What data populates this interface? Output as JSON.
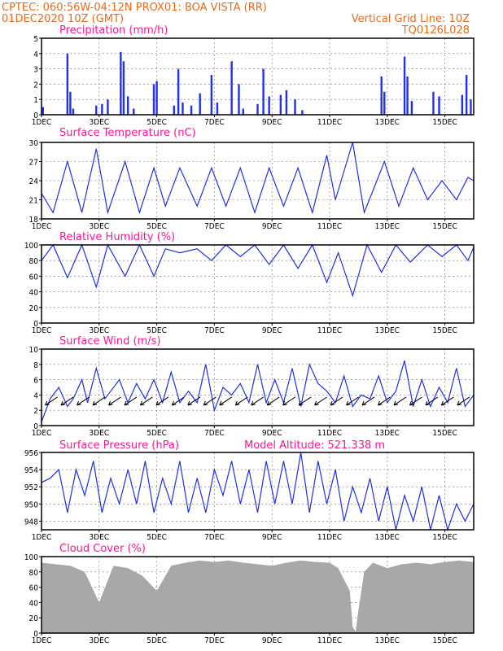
{
  "header": {
    "left1": "CPTEC:   060:56W-04:12N   PROX01: BOA VISTA (RR)",
    "left2": "01DEC2020 10Z (GMT)",
    "right2": "Vertical Grid Line: 10Z",
    "right3": "TQ0126L028"
  },
  "x_labels": [
    "1DEC",
    "3DEC",
    "5DEC",
    "7DEC",
    "9DEC",
    "11DEC",
    "13DEC",
    "15DEC"
  ],
  "x_label_day": [
    1,
    3,
    5,
    7,
    9,
    11,
    13,
    15
  ],
  "x_range_days": [
    1,
    16
  ],
  "colors": {
    "header": "#e86a1a",
    "title": "#ff1493",
    "series": "#2030e0",
    "cloud": "#a8a8a8"
  },
  "chart_data": [
    {
      "type": "bar",
      "title": "Precipitation (mm/h)",
      "ylim": [
        0,
        5
      ],
      "yticks": [
        0,
        1,
        2,
        3,
        4,
        5
      ],
      "series": [
        {
          "day": [
            1.05,
            1.9,
            2.0,
            2.1,
            2.9,
            3.1,
            3.3,
            3.75,
            3.85,
            4.0,
            4.2,
            4.9,
            5.0,
            5.6,
            5.75,
            5.9,
            6.2,
            6.5,
            6.9,
            7.1,
            7.6,
            7.85,
            8.0,
            8.5,
            8.7,
            8.9,
            9.3,
            9.5,
            9.8,
            10.05,
            12.8,
            12.9,
            13.6,
            13.7,
            13.85,
            14.6,
            14.8,
            15.6,
            15.75,
            15.9
          ],
          "values": [
            0.5,
            4.0,
            1.5,
            0.4,
            0.6,
            0.7,
            1.0,
            4.1,
            3.5,
            1.2,
            0.4,
            2.0,
            2.2,
            0.6,
            3.0,
            0.8,
            0.6,
            1.4,
            2.6,
            0.8,
            3.5,
            2.0,
            0.4,
            0.7,
            3.0,
            1.2,
            1.3,
            1.6,
            1.0,
            0.3,
            2.5,
            1.5,
            3.8,
            2.5,
            0.9,
            1.5,
            1.2,
            1.3,
            2.6,
            1.0
          ]
        }
      ]
    },
    {
      "type": "line",
      "title": "Surface Temperature (nC)",
      "ylim": [
        18,
        30
      ],
      "yticks": [
        18,
        21,
        24,
        27,
        30
      ],
      "series": [
        {
          "day": [
            1.0,
            1.4,
            1.9,
            2.4,
            2.9,
            3.3,
            3.9,
            4.4,
            4.9,
            5.3,
            5.8,
            6.4,
            6.9,
            7.4,
            7.9,
            8.4,
            8.9,
            9.4,
            9.9,
            10.4,
            10.9,
            11.2,
            11.8,
            12.2,
            12.9,
            13.4,
            13.9,
            14.4,
            14.9,
            15.4,
            15.8,
            16.0
          ],
          "values": [
            22,
            19,
            27,
            19,
            29,
            19,
            27,
            19,
            26,
            20,
            26,
            20,
            26,
            20,
            26,
            19,
            26,
            20,
            26,
            19,
            28,
            21,
            30,
            19,
            27,
            20,
            26,
            21,
            24,
            21,
            24.5,
            24
          ]
        }
      ]
    },
    {
      "type": "line",
      "title": "Relative Humidity (%)",
      "ylim": [
        0,
        100
      ],
      "yticks": [
        0,
        20,
        40,
        60,
        80,
        100
      ],
      "series": [
        {
          "day": [
            1.0,
            1.4,
            1.9,
            2.4,
            2.9,
            3.3,
            3.9,
            4.4,
            4.9,
            5.3,
            5.8,
            6.4,
            6.9,
            7.4,
            7.9,
            8.4,
            8.9,
            9.4,
            9.9,
            10.4,
            10.9,
            11.3,
            11.8,
            12.3,
            12.8,
            13.3,
            13.8,
            14.4,
            14.9,
            15.4,
            15.8,
            16.0
          ],
          "values": [
            80,
            100,
            58,
            100,
            46,
            100,
            60,
            100,
            60,
            95,
            90,
            95,
            80,
            100,
            85,
            100,
            75,
            100,
            70,
            100,
            52,
            90,
            35,
            100,
            65,
            100,
            78,
            100,
            85,
            100,
            80,
            97
          ]
        }
      ]
    },
    {
      "type": "line",
      "title": "Surface Wind (m/s)",
      "ylim": [
        0,
        10
      ],
      "yticks": [
        0,
        2,
        4,
        6,
        8,
        10
      ],
      "series": [
        {
          "day": [
            1.0,
            1.3,
            1.6,
            1.9,
            2.1,
            2.4,
            2.6,
            2.9,
            3.2,
            3.4,
            3.7,
            4.0,
            4.3,
            4.6,
            4.9,
            5.2,
            5.5,
            5.8,
            6.1,
            6.4,
            6.7,
            7.0,
            7.3,
            7.6,
            7.9,
            8.2,
            8.5,
            8.8,
            9.1,
            9.4,
            9.7,
            10.0,
            10.3,
            10.6,
            10.9,
            11.2,
            11.5,
            11.8,
            12.1,
            12.4,
            12.7,
            13.0,
            13.3,
            13.6,
            13.9,
            14.2,
            14.5,
            14.8,
            15.1,
            15.4,
            15.7,
            16.0
          ],
          "values": [
            0.5,
            3.5,
            5.0,
            2.5,
            3.5,
            6.0,
            3.0,
            7.5,
            3.5,
            4.5,
            6.0,
            3.0,
            5.5,
            3.5,
            6.0,
            3.0,
            7.0,
            3.0,
            4.5,
            3.0,
            8.0,
            2.0,
            5.0,
            4.0,
            5.5,
            3.0,
            8.0,
            3.0,
            6.0,
            3.0,
            7.5,
            2.5,
            8.0,
            5.5,
            4.5,
            3.0,
            6.5,
            2.5,
            4.0,
            3.5,
            6.5,
            3.0,
            4.5,
            8.5,
            2.5,
            6.0,
            2.5,
            5.0,
            3.0,
            7.5,
            2.5,
            4.0
          ]
        }
      ]
    },
    {
      "type": "line",
      "title": "Surface Pressure (hPa)",
      "annotation": "Model Altitude: 521.338  m",
      "ylim": [
        947,
        956
      ],
      "yticks": [
        948,
        950,
        952,
        954,
        956
      ],
      "series": [
        {
          "day": [
            1.0,
            1.3,
            1.6,
            1.9,
            2.2,
            2.5,
            2.8,
            3.1,
            3.4,
            3.7,
            4.0,
            4.3,
            4.6,
            4.9,
            5.2,
            5.5,
            5.8,
            6.1,
            6.4,
            6.7,
            7.0,
            7.3,
            7.6,
            7.9,
            8.2,
            8.5,
            8.8,
            9.1,
            9.4,
            9.7,
            10.0,
            10.3,
            10.6,
            10.9,
            11.2,
            11.5,
            11.8,
            12.1,
            12.4,
            12.7,
            13.0,
            13.3,
            13.6,
            13.9,
            14.2,
            14.5,
            14.8,
            15.1,
            15.4,
            15.7,
            16.0
          ],
          "values": [
            952.5,
            953,
            954,
            949,
            954,
            951,
            955,
            949,
            953,
            950,
            954,
            950,
            955,
            949,
            953,
            950,
            955,
            949,
            953,
            949,
            954,
            951,
            955,
            950,
            954,
            949,
            955,
            950,
            955,
            950,
            956,
            949,
            955,
            950,
            954,
            948,
            952,
            949,
            953,
            948,
            952,
            947,
            951,
            948,
            952,
            947,
            951,
            947,
            950,
            948,
            950
          ]
        }
      ]
    },
    {
      "type": "area",
      "title": "Cloud Cover (%)",
      "ylim": [
        0,
        100
      ],
      "yticks": [
        0,
        20,
        40,
        60,
        80,
        100
      ],
      "series": [
        {
          "day": [
            1.0,
            1.5,
            2.0,
            2.5,
            3.0,
            3.5,
            4.0,
            4.5,
            5.0,
            5.5,
            6.0,
            6.5,
            7.0,
            7.5,
            8.0,
            8.5,
            9.0,
            9.5,
            10.0,
            10.5,
            11.0,
            11.3,
            11.5,
            11.7,
            11.8,
            11.9,
            12.0,
            12.2,
            12.5,
            13.0,
            13.5,
            14.0,
            14.5,
            15.0,
            15.5,
            16.0
          ],
          "values": [
            92,
            90,
            88,
            80,
            40,
            88,
            85,
            75,
            55,
            88,
            92,
            95,
            93,
            95,
            92,
            90,
            88,
            92,
            95,
            93,
            92,
            85,
            70,
            55,
            8,
            2,
            30,
            80,
            92,
            85,
            90,
            92,
            90,
            93,
            95,
            93
          ]
        }
      ]
    }
  ]
}
